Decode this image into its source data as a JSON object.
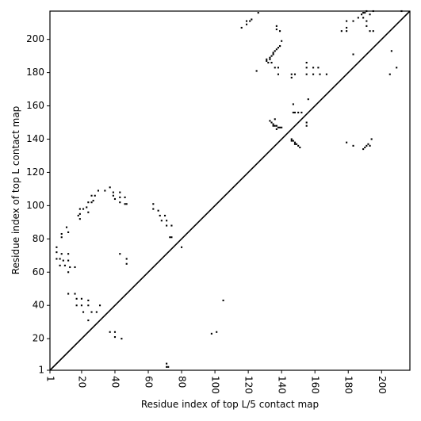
{
  "chart_data": {
    "type": "scatter",
    "xlabel": "Residue index of top L/5 contact map",
    "ylabel": "Residue index of top L contact map",
    "xlim": [
      1,
      217
    ],
    "ylim": [
      1,
      217
    ],
    "xticks": [
      1,
      20,
      40,
      60,
      80,
      100,
      120,
      140,
      160,
      180,
      200
    ],
    "yticks": [
      1,
      20,
      40,
      60,
      80,
      100,
      120,
      140,
      160,
      180,
      200
    ],
    "diagonal": true,
    "series": [
      {
        "color": "#000000",
        "x": [
          116,
          119,
          119,
          121,
          122,
          126,
          125,
          137,
          137,
          139,
          140,
          139,
          131,
          131,
          133,
          133,
          134,
          135,
          135,
          136,
          137,
          138,
          139,
          134,
          136,
          138,
          138,
          132,
          146,
          148,
          146,
          155,
          155,
          155,
          159,
          159,
          162,
          163,
          167,
          176,
          179,
          179,
          179,
          183,
          183,
          186,
          188,
          189,
          190,
          191,
          189,
          191,
          191,
          193,
          195,
          193,
          195,
          206,
          205,
          209,
          212,
          133,
          134,
          135,
          136,
          137,
          138,
          139,
          137,
          140,
          136,
          135,
          147,
          147,
          148,
          150,
          152,
          146,
          147,
          148,
          149,
          150,
          151,
          146,
          148,
          155,
          155,
          156,
          179,
          183,
          189,
          190,
          191,
          192,
          194,
          193,
          5,
          5,
          5,
          7,
          8,
          9,
          10,
          12,
          12,
          13,
          7,
          16,
          8,
          8,
          11,
          12,
          12,
          12,
          16,
          17,
          17,
          20,
          20,
          21,
          24,
          24,
          24,
          26,
          29,
          31,
          18,
          19,
          19,
          19,
          21,
          23,
          24,
          24,
          26,
          27,
          26,
          28,
          30,
          34,
          37,
          39,
          39,
          40,
          43,
          43,
          43,
          46,
          46,
          47,
          63,
          63,
          66,
          67,
          68,
          70,
          71,
          71,
          74,
          73,
          74,
          47,
          47,
          43
        ],
        "y": [
          207,
          209,
          211,
          211,
          212,
          216,
          181,
          208,
          206,
          205,
          199,
          196,
          187,
          188,
          188,
          189,
          190,
          191,
          192,
          193,
          194,
          195,
          196,
          186,
          183,
          183,
          179,
          186,
          179,
          179,
          177,
          186,
          183,
          179,
          183,
          179,
          183,
          179,
          179,
          205,
          205,
          207,
          211,
          211,
          191,
          213,
          215,
          216,
          216,
          217,
          213,
          211,
          208,
          205,
          205,
          215,
          217,
          193,
          179,
          183,
          217,
          151,
          150,
          149,
          148,
          148,
          147,
          147,
          146,
          147,
          152,
          148,
          161,
          156,
          156,
          156,
          156,
          140,
          139,
          138,
          137,
          136,
          135,
          139,
          137,
          148,
          150,
          164,
          138,
          136,
          134,
          135,
          136,
          137,
          140,
          136,
          75,
          72,
          68,
          68,
          71,
          67,
          64,
          71,
          67,
          63,
          64,
          63,
          81,
          83,
          87,
          84,
          60,
          47,
          47,
          44,
          40,
          44,
          40,
          36,
          43,
          40,
          31,
          36,
          36,
          40,
          94,
          95,
          92,
          98,
          98,
          99,
          96,
          102,
          102,
          103,
          106,
          106,
          109,
          109,
          111,
          108,
          106,
          104,
          108,
          105,
          102,
          105,
          101,
          101,
          101,
          98,
          97,
          94,
          91,
          94,
          91,
          88,
          88,
          81,
          81,
          68,
          65,
          71
        ]
      },
      {
        "color": "#000000",
        "x": [
          105,
          98,
          101,
          71,
          71,
          72,
          80,
          37,
          40,
          40,
          44
        ],
        "y": [
          43,
          23,
          24,
          3,
          5,
          3,
          75,
          24,
          24,
          21,
          20
        ]
      }
    ]
  }
}
